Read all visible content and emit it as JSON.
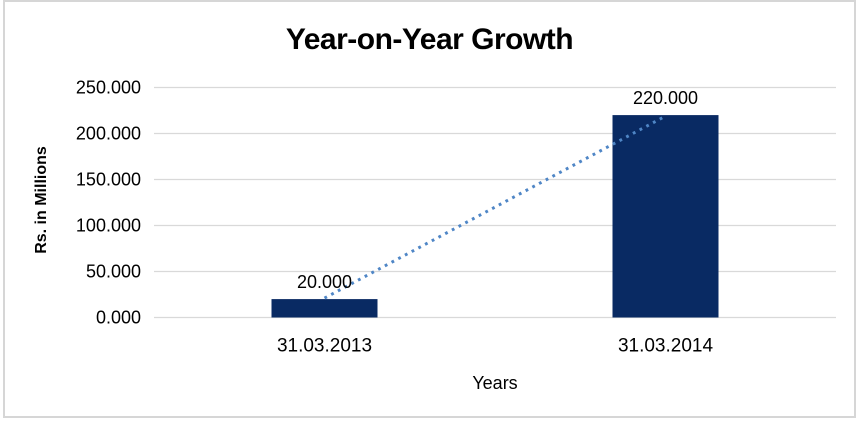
{
  "frame": {
    "background": "#ffffff",
    "border_color": "#d6d6d6"
  },
  "chart_data": {
    "type": "bar",
    "title": "Year-on-Year Growth",
    "xlabel": "Years",
    "ylabel": "Rs. in Millions",
    "categories": [
      "31.03.2013",
      "31.03.2014"
    ],
    "values": [
      20000,
      220000
    ],
    "value_labels": [
      "20.000",
      "220.000"
    ],
    "ylim": [
      0,
      250000
    ],
    "ytick_values": [
      0,
      50000,
      100000,
      150000,
      200000,
      250000
    ],
    "ytick_labels": [
      "0.000",
      "50.000",
      "100.000",
      "150.000",
      "200.000",
      "250.000"
    ],
    "grid": true,
    "legend": "none",
    "bar_color": "#092a63",
    "gridline_color": "#d9d9d9",
    "text_color": "#000000",
    "trendline": {
      "show": true,
      "style": "dotted",
      "color": "#4f86c6",
      "from_category": "31.03.2013",
      "to_category": "31.03.2014"
    }
  }
}
